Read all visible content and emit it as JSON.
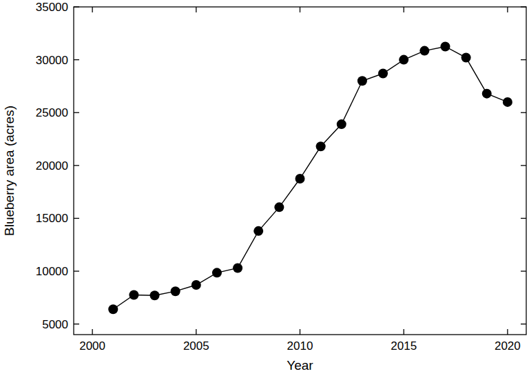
{
  "chart_data": {
    "type": "line",
    "x_label": "Year",
    "y_label": "Blueberry area (acres)",
    "x": [
      2001,
      2002,
      2003,
      2004,
      2005,
      2006,
      2007,
      2008,
      2009,
      2010,
      2011,
      2012,
      2013,
      2014,
      2015,
      2016,
      2017,
      2018,
      2019,
      2020
    ],
    "values": [
      6400,
      7750,
      7700,
      8100,
      8700,
      9850,
      10300,
      13800,
      16050,
      18750,
      21800,
      23900,
      28000,
      28700,
      30000,
      30850,
      31250,
      30200,
      26800,
      26000
    ],
    "color": "#000000",
    "marker": "circle",
    "line_style": "solid",
    "grid": false,
    "xlim": [
      1999.1,
      2020.9
    ],
    "xticks": [
      2000,
      2005,
      2010,
      2015,
      2020
    ],
    "ylim": [
      4000,
      35000
    ],
    "yticks": [
      5000,
      10000,
      15000,
      20000,
      25000,
      30000,
      35000
    ]
  }
}
